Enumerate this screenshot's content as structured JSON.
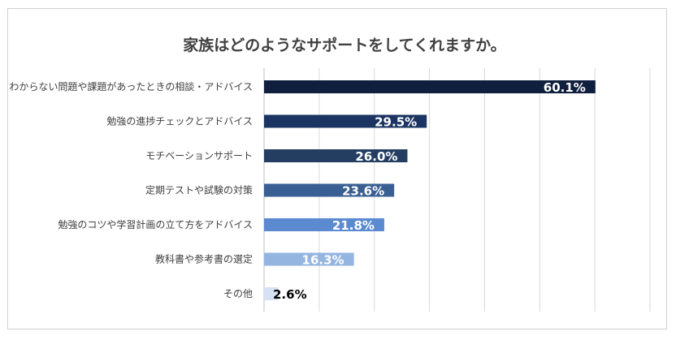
{
  "chart_data": {
    "type": "bar",
    "orientation": "horizontal",
    "title": "家族はどのようなサポートをしてくれますか。",
    "categories": [
      "わからない問題や課題があったときの相談・アドバイス",
      "勉強の進捗チェックとアドバイス",
      "モチベーションサポート",
      "定期テストや試験の対策",
      "勉強のコツや学習計画の立て方をアドバイス",
      "教科書や参考書の選定",
      "その他"
    ],
    "values": [
      60.1,
      29.5,
      26.0,
      23.6,
      21.8,
      16.3,
      2.6
    ],
    "labels": [
      "60.1%",
      "29.5%",
      "26.0%",
      "23.6%",
      "21.8%",
      "16.3%",
      "2.6%"
    ],
    "colors": [
      "#0f1f3d",
      "#1b3461",
      "#243e62",
      "#3a5f93",
      "#5b8ad0",
      "#94b5e0",
      "#d6e2f3"
    ],
    "label_colors": [
      "#ffffff",
      "#ffffff",
      "#ffffff",
      "#ffffff",
      "#ffffff",
      "#ffffff",
      "#000000"
    ],
    "xlim": [
      0,
      70
    ],
    "grid": true,
    "gridline_color": "#d9d9d9",
    "xlabel": "",
    "ylabel": ""
  }
}
